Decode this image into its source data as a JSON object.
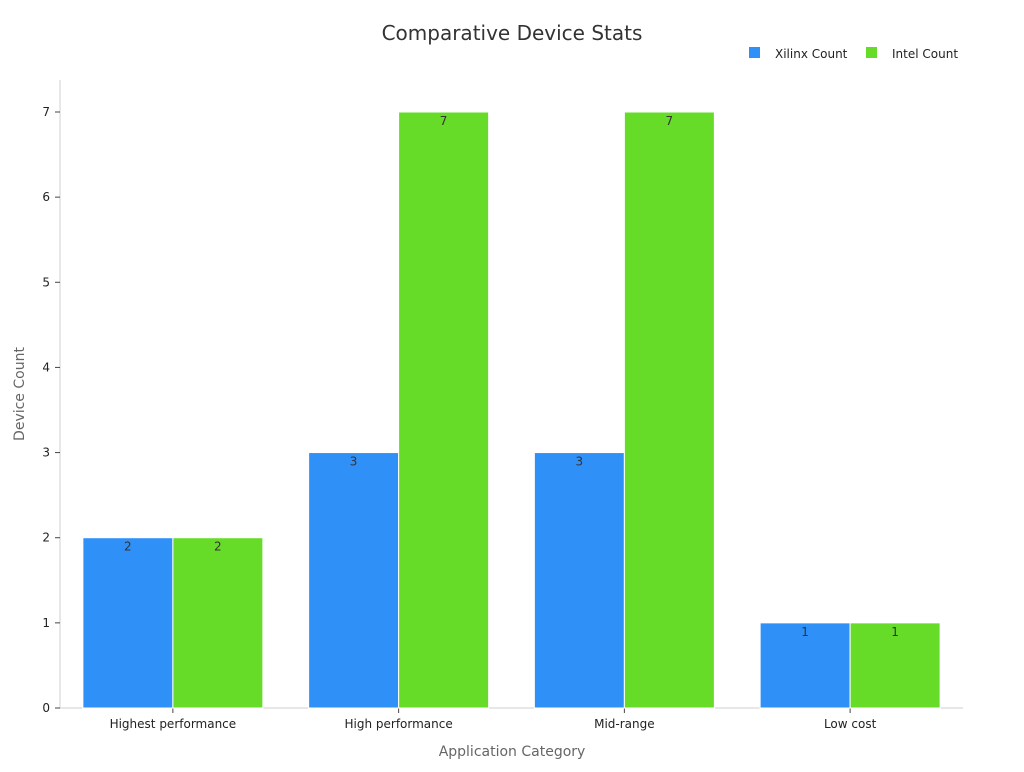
{
  "chart_data": {
    "type": "bar",
    "title": "Comparative Device Stats",
    "xlabel": "Application Category",
    "ylabel": "Device Count",
    "categories": [
      "Highest performance",
      "High performance",
      "Mid-range",
      "Low cost"
    ],
    "series": [
      {
        "name": "Xilinx Count",
        "values": [
          2,
          3,
          3,
          1
        ],
        "color": "#2f90f8"
      },
      {
        "name": "Intel Count",
        "values": [
          2,
          7,
          7,
          1
        ],
        "color": "#66dc29"
      }
    ],
    "ylim": [
      0,
      7
    ],
    "yticks": [
      0,
      1,
      2,
      3,
      4,
      5,
      6,
      7
    ],
    "legend": "top-right",
    "grid": false,
    "data_labels": true
  }
}
